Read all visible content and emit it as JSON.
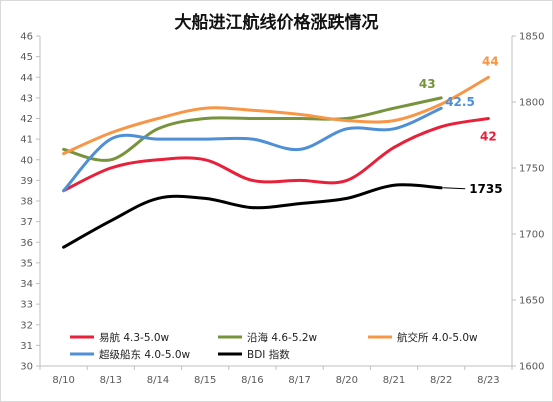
{
  "chart_data": {
    "type": "line",
    "title": "大船进江航线价格涨跌情况",
    "categories": [
      "8/10",
      "8/13",
      "8/14",
      "8/15",
      "8/16",
      "8/17",
      "8/20",
      "8/21",
      "8/22",
      "8/23"
    ],
    "ylim": [
      30,
      46
    ],
    "y_ticks": [
      30,
      31,
      32,
      33,
      34,
      35,
      36,
      37,
      38,
      39,
      40,
      41,
      42,
      43,
      44,
      45,
      46
    ],
    "y2lim": [
      1600,
      1850
    ],
    "y2_ticks": [
      1600,
      1650,
      1700,
      1750,
      1800,
      1850
    ],
    "grid": false,
    "legend_position": "bottom-left",
    "series": [
      {
        "name": "易航 4.3-5.0w",
        "axis": "left",
        "color": "#e8203a",
        "values": [
          38.5,
          39.6,
          40.0,
          40.0,
          39.0,
          39.0,
          39.0,
          40.6,
          41.6,
          42.0
        ],
        "end_label": "42",
        "label_color": "#e8203a"
      },
      {
        "name": "沿海 4.6-5.2w",
        "axis": "left",
        "color": "#77933c",
        "values": [
          40.5,
          40.0,
          41.5,
          42.0,
          42.0,
          42.0,
          42.0,
          42.5,
          43.0,
          null
        ],
        "end_label": "43",
        "label_color": "#77933c"
      },
      {
        "name": "航交所 4.0-5.0w",
        "axis": "left",
        "color": "#f79646",
        "values": [
          40.3,
          41.3,
          42.0,
          42.5,
          42.4,
          42.2,
          41.9,
          41.9,
          42.7,
          44.0
        ],
        "end_label": "44",
        "label_color": "#f79646"
      },
      {
        "name": "超级船东 4.0-5.0w",
        "axis": "left",
        "color": "#4f8fd6",
        "values": [
          38.5,
          41.0,
          41.0,
          41.0,
          41.0,
          40.5,
          41.5,
          41.5,
          42.5,
          null
        ],
        "end_label": "42.5",
        "label_color": "#4f8fd6"
      },
      {
        "name": "BDI 指数",
        "axis": "right",
        "color": "#000000",
        "values": [
          1690,
          1710,
          1727,
          1727,
          1720,
          1723,
          1727,
          1737,
          1735,
          null
        ],
        "end_label": "1735",
        "label_color": "#000000"
      }
    ]
  }
}
